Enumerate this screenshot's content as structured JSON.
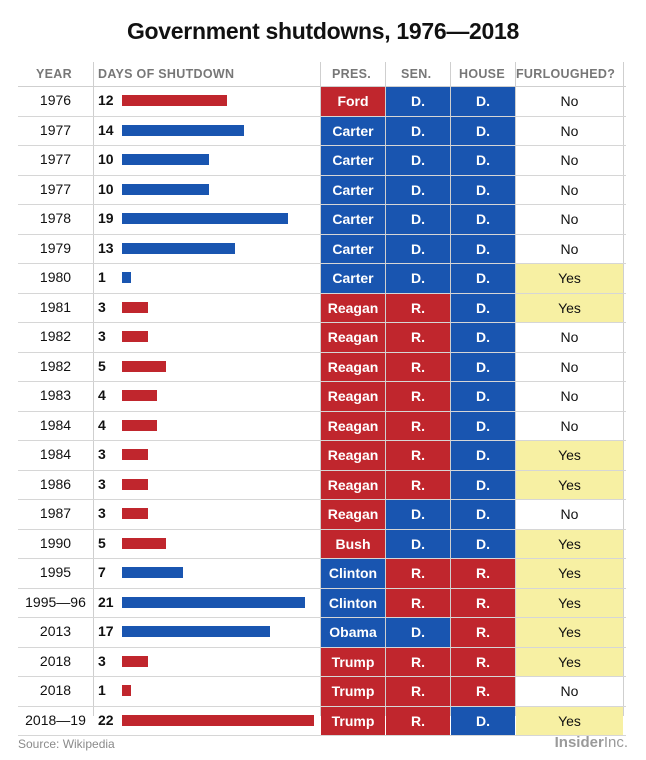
{
  "title": "Government shutdowns, 1976—2018",
  "headers": {
    "year": "YEAR",
    "days": "DAYS OF SHUTDOWN",
    "pres": "PRES.",
    "sen": "SEN.",
    "house": "HOUSE",
    "furloughed": "FURLOUGHED?"
  },
  "colors": {
    "republican": "#c0262d",
    "democrat": "#1955b0",
    "yes_fill": "#f7f0a3"
  },
  "chart_data": {
    "type": "table",
    "max_days": 22,
    "rows": [
      {
        "year": "1976",
        "days": 12,
        "pres": "Ford",
        "pres_party": "R",
        "sen": "D.",
        "house": "D.",
        "furloughed": "No"
      },
      {
        "year": "1977",
        "days": 14,
        "pres": "Carter",
        "pres_party": "D",
        "sen": "D.",
        "house": "D.",
        "furloughed": "No"
      },
      {
        "year": "1977",
        "days": 10,
        "pres": "Carter",
        "pres_party": "D",
        "sen": "D.",
        "house": "D.",
        "furloughed": "No"
      },
      {
        "year": "1977",
        "days": 10,
        "pres": "Carter",
        "pres_party": "D",
        "sen": "D.",
        "house": "D.",
        "furloughed": "No"
      },
      {
        "year": "1978",
        "days": 19,
        "pres": "Carter",
        "pres_party": "D",
        "sen": "D.",
        "house": "D.",
        "furloughed": "No"
      },
      {
        "year": "1979",
        "days": 13,
        "pres": "Carter",
        "pres_party": "D",
        "sen": "D.",
        "house": "D.",
        "furloughed": "No"
      },
      {
        "year": "1980",
        "days": 1,
        "pres": "Carter",
        "pres_party": "D",
        "sen": "D.",
        "house": "D.",
        "furloughed": "Yes"
      },
      {
        "year": "1981",
        "days": 3,
        "pres": "Reagan",
        "pres_party": "R",
        "sen": "R.",
        "house": "D.",
        "furloughed": "Yes"
      },
      {
        "year": "1982",
        "days": 3,
        "pres": "Reagan",
        "pres_party": "R",
        "sen": "R.",
        "house": "D.",
        "furloughed": "No"
      },
      {
        "year": "1982",
        "days": 5,
        "pres": "Reagan",
        "pres_party": "R",
        "sen": "R.",
        "house": "D.",
        "furloughed": "No"
      },
      {
        "year": "1983",
        "days": 4,
        "pres": "Reagan",
        "pres_party": "R",
        "sen": "R.",
        "house": "D.",
        "furloughed": "No"
      },
      {
        "year": "1984",
        "days": 4,
        "pres": "Reagan",
        "pres_party": "R",
        "sen": "R.",
        "house": "D.",
        "furloughed": "No"
      },
      {
        "year": "1984",
        "days": 3,
        "pres": "Reagan",
        "pres_party": "R",
        "sen": "R.",
        "house": "D.",
        "furloughed": "Yes"
      },
      {
        "year": "1986",
        "days": 3,
        "pres": "Reagan",
        "pres_party": "R",
        "sen": "R.",
        "house": "D.",
        "furloughed": "Yes"
      },
      {
        "year": "1987",
        "days": 3,
        "pres": "Reagan",
        "pres_party": "R",
        "sen": "D.",
        "house": "D.",
        "furloughed": "No"
      },
      {
        "year": "1990",
        "days": 5,
        "pres": "Bush",
        "pres_party": "R",
        "sen": "D.",
        "house": "D.",
        "furloughed": "Yes"
      },
      {
        "year": "1995",
        "days": 7,
        "pres": "Clinton",
        "pres_party": "D",
        "sen": "R.",
        "house": "R.",
        "furloughed": "Yes"
      },
      {
        "year": "1995—96",
        "days": 21,
        "pres": "Clinton",
        "pres_party": "D",
        "sen": "R.",
        "house": "R.",
        "furloughed": "Yes"
      },
      {
        "year": "2013",
        "days": 17,
        "pres": "Obama",
        "pres_party": "D",
        "sen": "D.",
        "house": "R.",
        "furloughed": "Yes"
      },
      {
        "year": "2018",
        "days": 3,
        "pres": "Trump",
        "pres_party": "R",
        "sen": "R.",
        "house": "R.",
        "furloughed": "Yes"
      },
      {
        "year": "2018",
        "days": 1,
        "pres": "Trump",
        "pres_party": "R",
        "sen": "R.",
        "house": "R.",
        "furloughed": "No"
      },
      {
        "year": "2018—19",
        "days": 22,
        "pres": "Trump",
        "pres_party": "R",
        "sen": "R.",
        "house": "D.",
        "furloughed": "Yes"
      }
    ]
  },
  "footer": {
    "source": "Source: Wikipedia",
    "logo_bold": "Insider",
    "logo_rest": "Inc."
  }
}
